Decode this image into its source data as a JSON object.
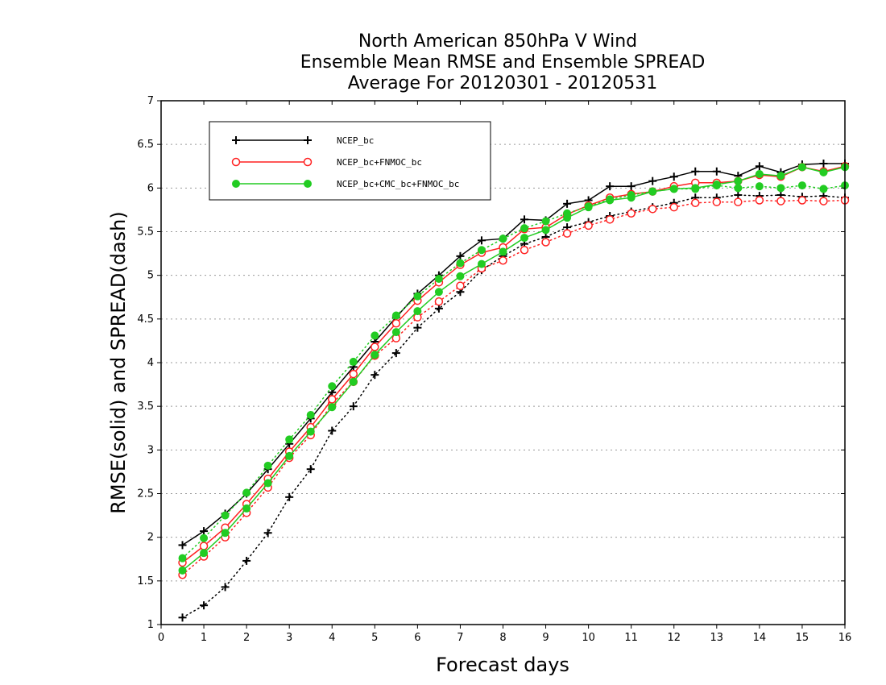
{
  "chart_data": {
    "type": "line",
    "title_lines": [
      "North American 850hPa V Wind",
      "Ensemble Mean RMSE and Ensemble SPREAD",
      "Average For 20120301 - 20120531"
    ],
    "xlabel": "Forecast days",
    "ylabel": "RMSE(solid) and SPREAD(dash)",
    "xlim": [
      0,
      16
    ],
    "ylim": [
      1,
      7
    ],
    "x_ticks": [
      "0",
      "1",
      "2",
      "3",
      "4",
      "5",
      "6",
      "7",
      "8",
      "9",
      "10",
      "11",
      "12",
      "13",
      "14",
      "15",
      "16"
    ],
    "y_ticks": [
      "1",
      "1.5",
      "2",
      "2.5",
      "3",
      "3.5",
      "4",
      "4.5",
      "5",
      "5.5",
      "6",
      "6.5",
      "7"
    ],
    "grid": "horizontal dotted",
    "legend_position": "top-left",
    "x": [
      0.5,
      1,
      1.5,
      2,
      2.5,
      3,
      3.5,
      4,
      4.5,
      5,
      5.5,
      6,
      6.5,
      7,
      7.5,
      8,
      8.5,
      9,
      9.5,
      10,
      10.5,
      11,
      11.5,
      12,
      12.5,
      13,
      13.5,
      14,
      14.5,
      15,
      15.5,
      16
    ],
    "series": [
      {
        "name": "NCEP_bc",
        "color": "#000000",
        "marker": "plus",
        "rmse": [
          1.91,
          2.07,
          2.27,
          2.5,
          2.78,
          3.07,
          3.36,
          3.66,
          3.95,
          4.24,
          4.52,
          4.79,
          5.0,
          5.22,
          5.4,
          5.42,
          5.64,
          5.63,
          5.82,
          5.86,
          6.02,
          6.02,
          6.08,
          6.13,
          6.19,
          6.19,
          6.14,
          6.25,
          6.18,
          6.27,
          6.28,
          6.28
        ],
        "spread": [
          1.08,
          1.22,
          1.43,
          1.73,
          2.05,
          2.46,
          2.78,
          3.22,
          3.5,
          3.86,
          4.11,
          4.4,
          4.62,
          4.81,
          5.06,
          5.22,
          5.36,
          5.44,
          5.55,
          5.61,
          5.68,
          5.73,
          5.78,
          5.83,
          5.89,
          5.89,
          5.92,
          5.91,
          5.92,
          5.9,
          5.91,
          5.89
        ]
      },
      {
        "name": "NCEP_bc+FNMOC_bc",
        "color": "#ff2020",
        "marker": "open-circle",
        "rmse": [
          1.71,
          1.9,
          2.11,
          2.38,
          2.67,
          2.98,
          3.26,
          3.58,
          3.87,
          4.18,
          4.45,
          4.71,
          4.92,
          5.12,
          5.26,
          5.32,
          5.53,
          5.55,
          5.7,
          5.8,
          5.89,
          5.93,
          5.96,
          6.02,
          6.06,
          6.06,
          6.08,
          6.15,
          6.13,
          6.24,
          6.19,
          6.25
        ],
        "spread": [
          1.57,
          1.78,
          2.0,
          2.28,
          2.57,
          2.91,
          3.17,
          3.53,
          3.78,
          4.08,
          4.28,
          4.52,
          4.7,
          4.88,
          5.08,
          5.17,
          5.29,
          5.38,
          5.48,
          5.57,
          5.64,
          5.71,
          5.76,
          5.78,
          5.83,
          5.84,
          5.84,
          5.86,
          5.85,
          5.86,
          5.85,
          5.86
        ]
      },
      {
        "name": "NCEP_bc+CMC_bc+FNMOC_bc",
        "color": "#22cc22",
        "marker": "filled-circle",
        "rmse": [
          1.62,
          1.82,
          2.05,
          2.33,
          2.62,
          2.93,
          3.21,
          3.49,
          3.78,
          4.09,
          4.35,
          4.59,
          4.81,
          4.99,
          5.13,
          5.27,
          5.43,
          5.52,
          5.66,
          5.78,
          5.86,
          5.89,
          5.96,
          5.99,
          6.0,
          6.04,
          6.08,
          6.16,
          6.14,
          6.24,
          6.18,
          6.24
        ],
        "spread": [
          1.76,
          1.99,
          2.25,
          2.51,
          2.82,
          3.12,
          3.4,
          3.73,
          4.01,
          4.31,
          4.54,
          4.76,
          4.96,
          5.14,
          5.29,
          5.42,
          5.54,
          5.62,
          5.71,
          5.79,
          5.87,
          5.92,
          5.96,
          5.99,
          5.99,
          6.03,
          6.0,
          6.02,
          6.0,
          6.03,
          5.99,
          6.03
        ]
      }
    ]
  }
}
